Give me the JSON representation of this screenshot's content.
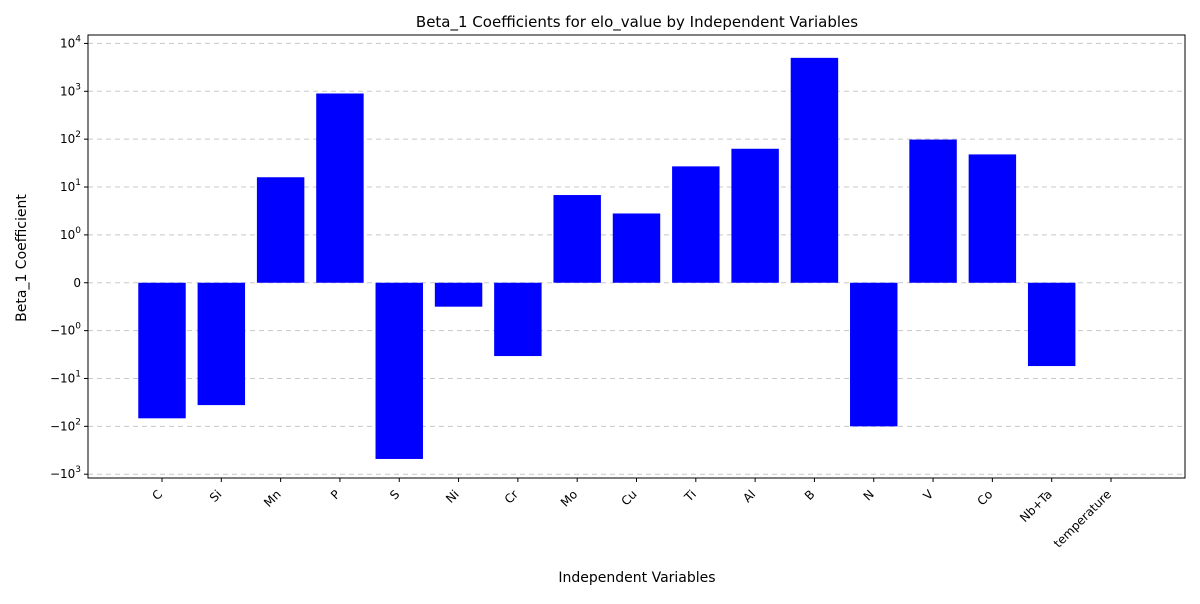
{
  "chart_data": {
    "type": "bar",
    "title": "Beta_1 Coefficients for elo_value by Independent Variables",
    "xlabel": "Independent Variables",
    "ylabel": "Beta_1 Coefficient",
    "yscale": "symlog",
    "linthresh": 1,
    "ylim": [
      -1200,
      15000
    ],
    "grid": "y-dashed",
    "bar_color": "#0000ff",
    "categories": [
      "C",
      "Si",
      "Mn",
      "P",
      "S",
      "Ni",
      "Cr",
      "Mo",
      "Cu",
      "Ti",
      "Al",
      "B",
      "N",
      "V",
      "Co",
      "Nb+Ta",
      "temperature"
    ],
    "values": [
      -68,
      -36,
      16,
      900,
      -480,
      -0.5,
      -3.4,
      6.8,
      2.8,
      27,
      63,
      5000,
      -100,
      98,
      48,
      -5.5,
      null
    ],
    "yticks": [
      {
        "value": 10000,
        "base": "10",
        "exp": "4"
      },
      {
        "value": 1000,
        "base": "10",
        "exp": "3"
      },
      {
        "value": 100,
        "base": "10",
        "exp": "2"
      },
      {
        "value": 10,
        "base": "10",
        "exp": "1"
      },
      {
        "value": 1,
        "base": "10",
        "exp": "0"
      },
      {
        "value": 0,
        "base": "0",
        "exp": ""
      },
      {
        "value": -1,
        "base": "−10",
        "exp": "0"
      },
      {
        "value": -10,
        "base": "−10",
        "exp": "1"
      },
      {
        "value": -100,
        "base": "−10",
        "exp": "2"
      },
      {
        "value": -1000,
        "base": "−10",
        "exp": "3"
      }
    ]
  }
}
